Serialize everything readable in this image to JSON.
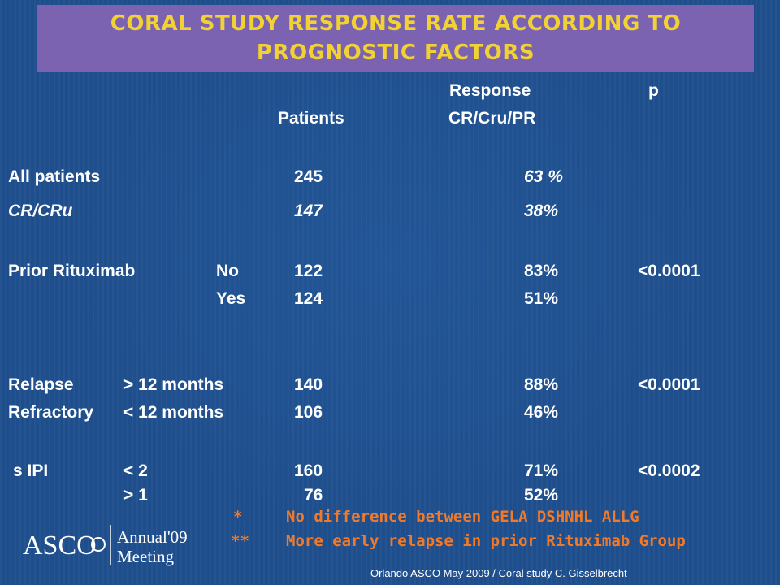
{
  "title_lines": [
    "CORAL STUDY RESPONSE RATE ACCORDING TO",
    "PROGNOSTIC FACTORS"
  ],
  "headers": {
    "response": "Response",
    "p": "p",
    "patients": "Patients",
    "crcrupr": "CR/Cru/PR"
  },
  "rows": [
    {
      "label": "All patients",
      "sub": "",
      "patients": "245",
      "response": "63 %",
      "p": ""
    },
    {
      "label": "CR/CRu",
      "sub": "",
      "patients": "147",
      "response": "38%",
      "p": ""
    },
    {
      "label": "Prior Rituximab",
      "sub": "No",
      "patients": "122",
      "response": "83%",
      "p": "<0.0001"
    },
    {
      "label": "",
      "sub": "Yes",
      "patients": "124",
      "response": "51%",
      "p": ""
    },
    {
      "label": "Relapse",
      "sub": "> 12 months",
      "patients": "140",
      "response": "88%",
      "p": "<0.0001"
    },
    {
      "label": "Refractory",
      "sub": "< 12 months",
      "patients": "106",
      "response": "46%",
      "p": ""
    },
    {
      "label": "s IPI",
      "sub": "< 2",
      "patients": "160",
      "response": "71%",
      "p": "<0.0002"
    },
    {
      "label": "",
      "sub": "> 1",
      "patients": "76",
      "response": "52%",
      "p": ""
    }
  ],
  "footnotes": [
    {
      "mark": "*",
      "text": "No difference between GELA DSHNHL ALLG"
    },
    {
      "mark": "**",
      "text": "More early relapse in prior Rituximab Group"
    }
  ],
  "logo": {
    "brand": "ASCO",
    "line1": "Annual'09",
    "line2": "Meeting"
  },
  "credit": "Orlando ASCO May 2009 / Coral study  C. Gisselbrecht",
  "colors": {
    "background": "#1f4e8c",
    "title_box": "#7b63b2",
    "title_text": "#f2d232",
    "footnote_text": "#f07a2a"
  }
}
